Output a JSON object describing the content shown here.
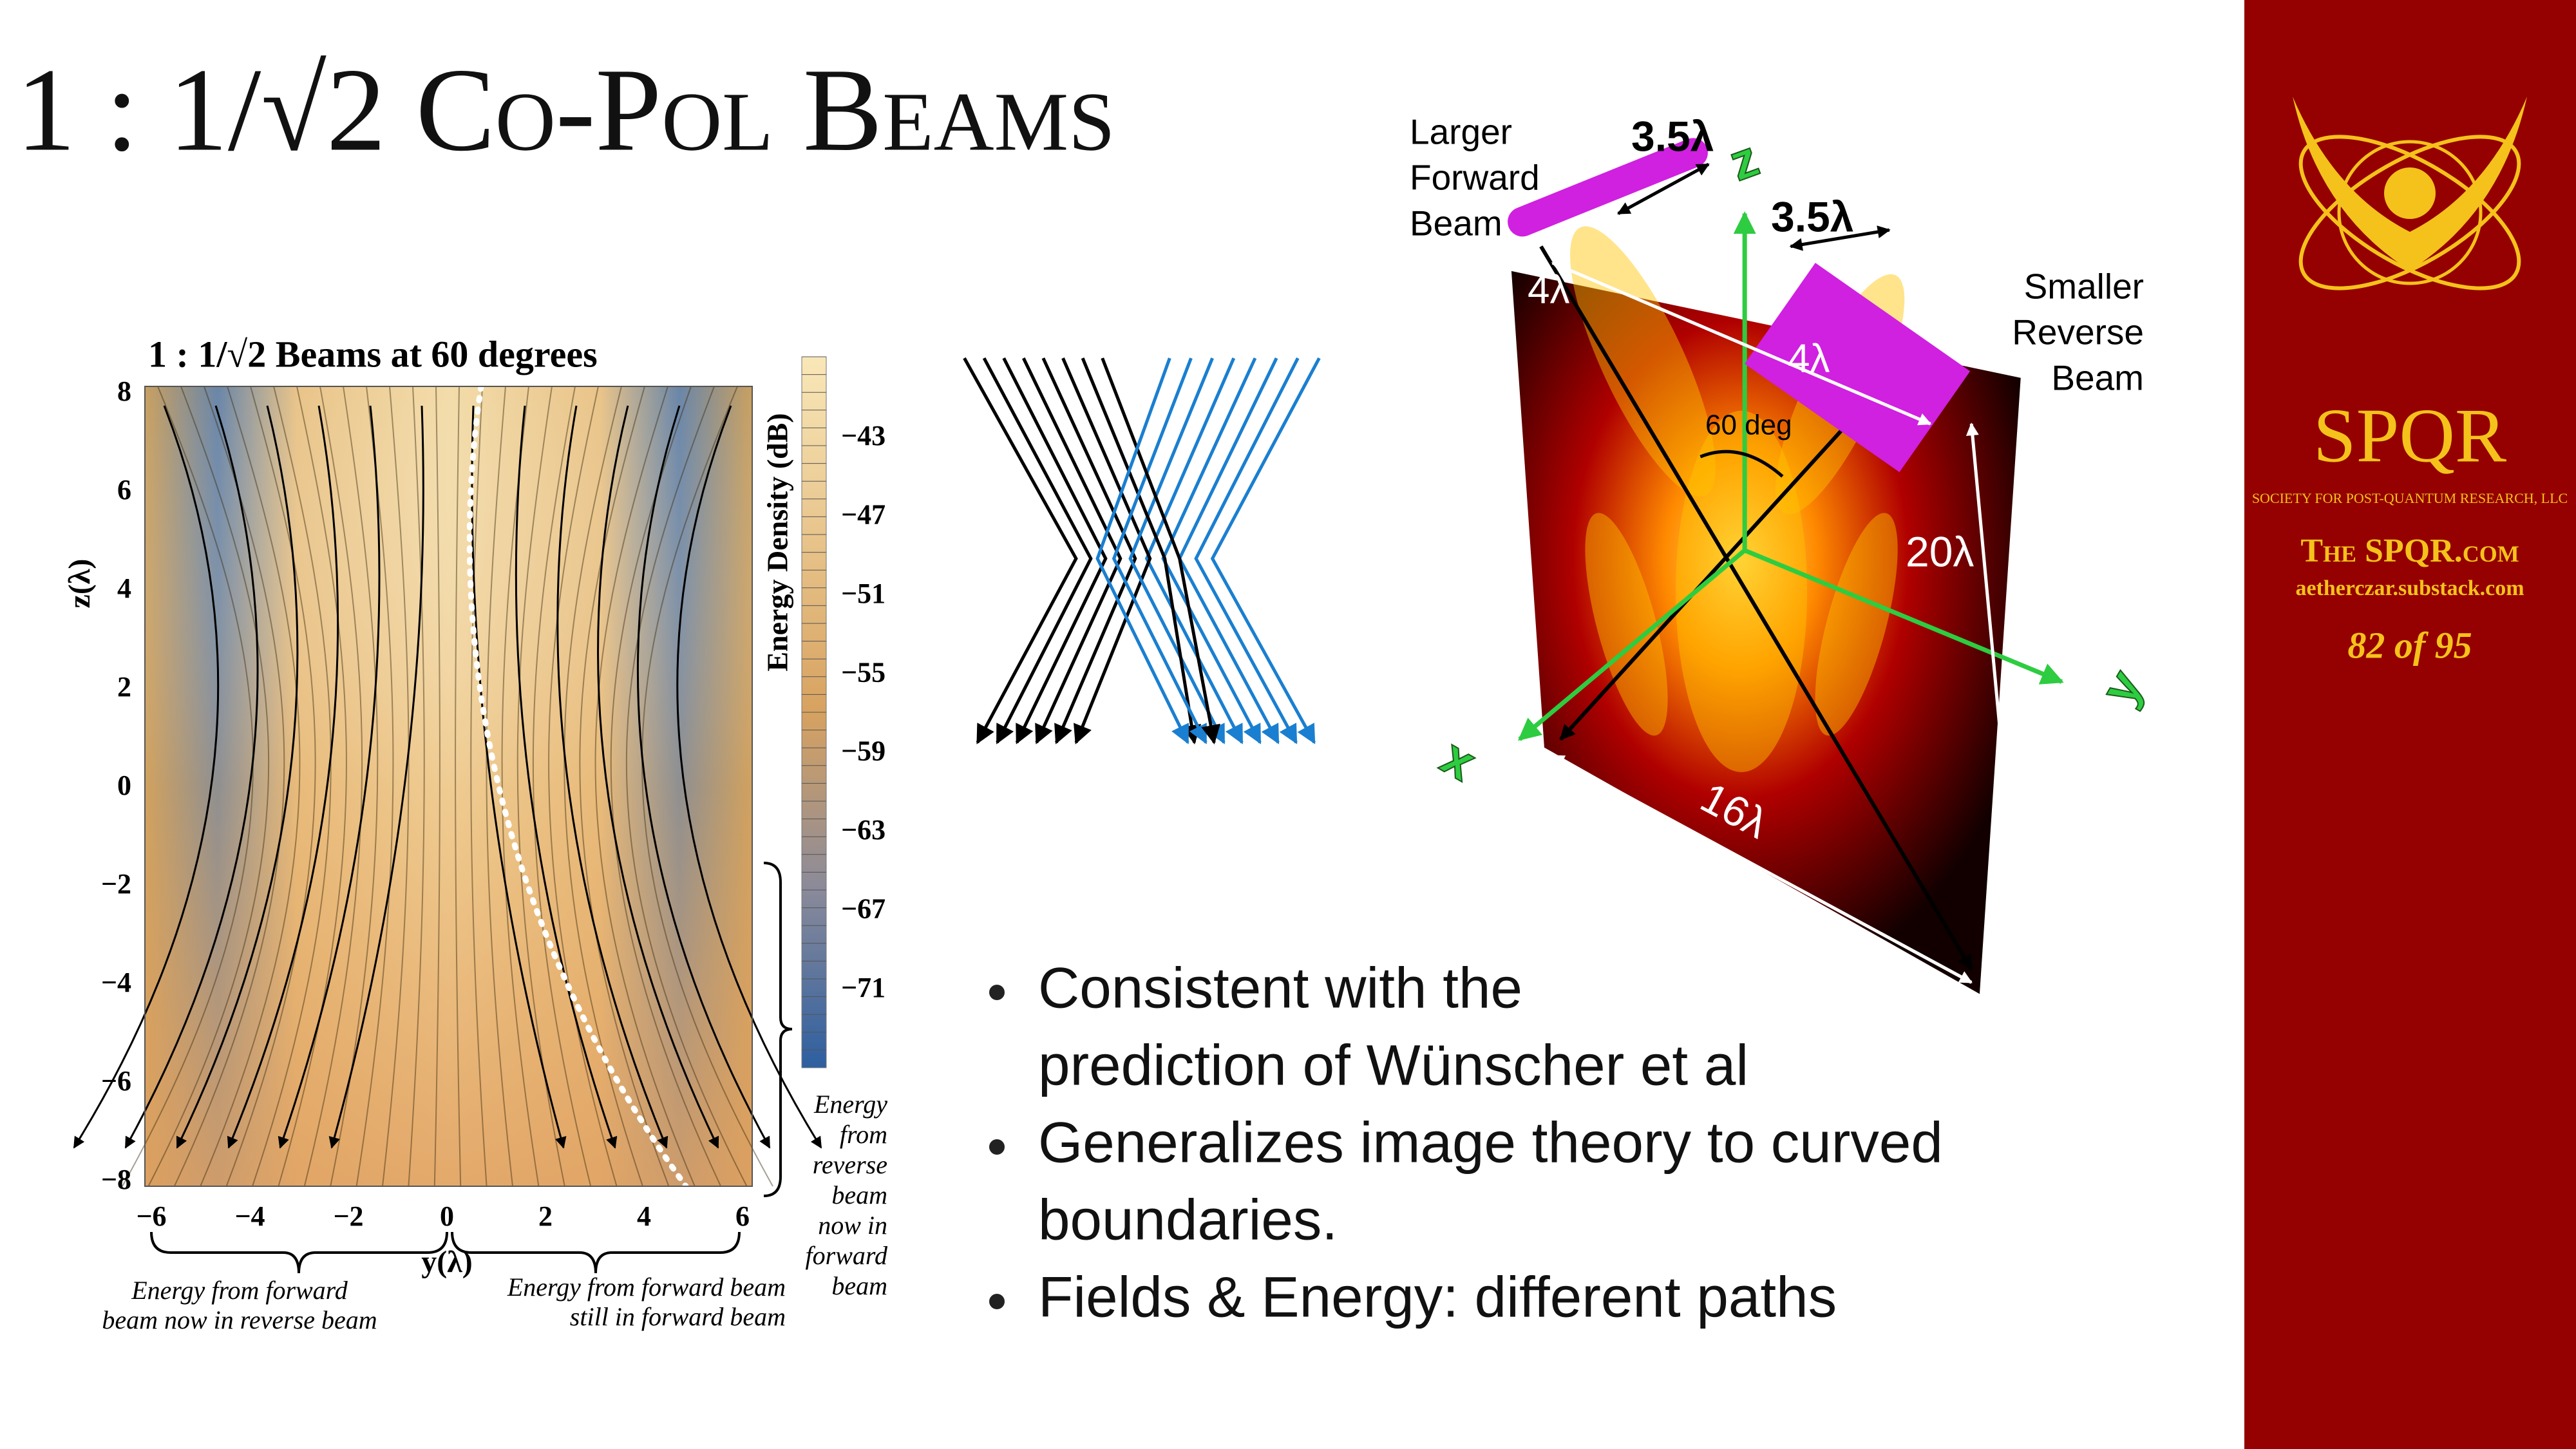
{
  "title": "1 : 1/√2 Co-Pol Beams",
  "left_figure": {
    "title": "1 : 1/√2 Beams at 60 degrees",
    "y_axis_label": "z(λ)",
    "x_axis_label": "y(λ)",
    "y_ticks": [
      "8",
      "6",
      "4",
      "2",
      "0",
      "−2",
      "−4",
      "−6",
      "−8"
    ],
    "x_ticks": [
      "−6",
      "−4",
      "−2",
      "0",
      "2",
      "4",
      "6"
    ],
    "colorbar_label": "Energy Density (dB)",
    "colorbar_ticks": [
      "−43",
      "−47",
      "−51",
      "−55",
      "−59",
      "−63",
      "−67",
      "−71"
    ],
    "annotations": {
      "right": [
        "Energy",
        "from",
        "reverse",
        "beam",
        "now in",
        "forward",
        "beam"
      ],
      "bottom_left": [
        "Energy from forward",
        "beam now in reverse beam"
      ],
      "bottom_right": [
        "Energy from forward beam",
        "still in forward beam"
      ]
    }
  },
  "right_figure": {
    "forward_beam_label": [
      "Larger",
      "Forward",
      "Beam"
    ],
    "reverse_beam_label": [
      "Smaller",
      "Reverse",
      "Beam"
    ],
    "forward_width": "3.5λ",
    "reverse_width": "3.5λ",
    "forward_height": "4λ",
    "reverse_height": "4λ",
    "angle": "60 deg",
    "height": "20λ",
    "width": "16λ",
    "axes": [
      "z",
      "y",
      "x"
    ]
  },
  "bullets": [
    [
      "Consistent with the",
      "prediction of Wünscher et al"
    ],
    [
      "Generalizes image theory to curved",
      "boundaries."
    ],
    [
      "Fields & Energy: different paths"
    ]
  ],
  "sidebar": {
    "logo_text": "SPQR",
    "org": "SOCIETY FOR POST-QUANTUM RESEARCH, LLC",
    "site": "The SPQR.com",
    "substack": "aetherczar.substack.com",
    "page": "82 of 95"
  }
}
